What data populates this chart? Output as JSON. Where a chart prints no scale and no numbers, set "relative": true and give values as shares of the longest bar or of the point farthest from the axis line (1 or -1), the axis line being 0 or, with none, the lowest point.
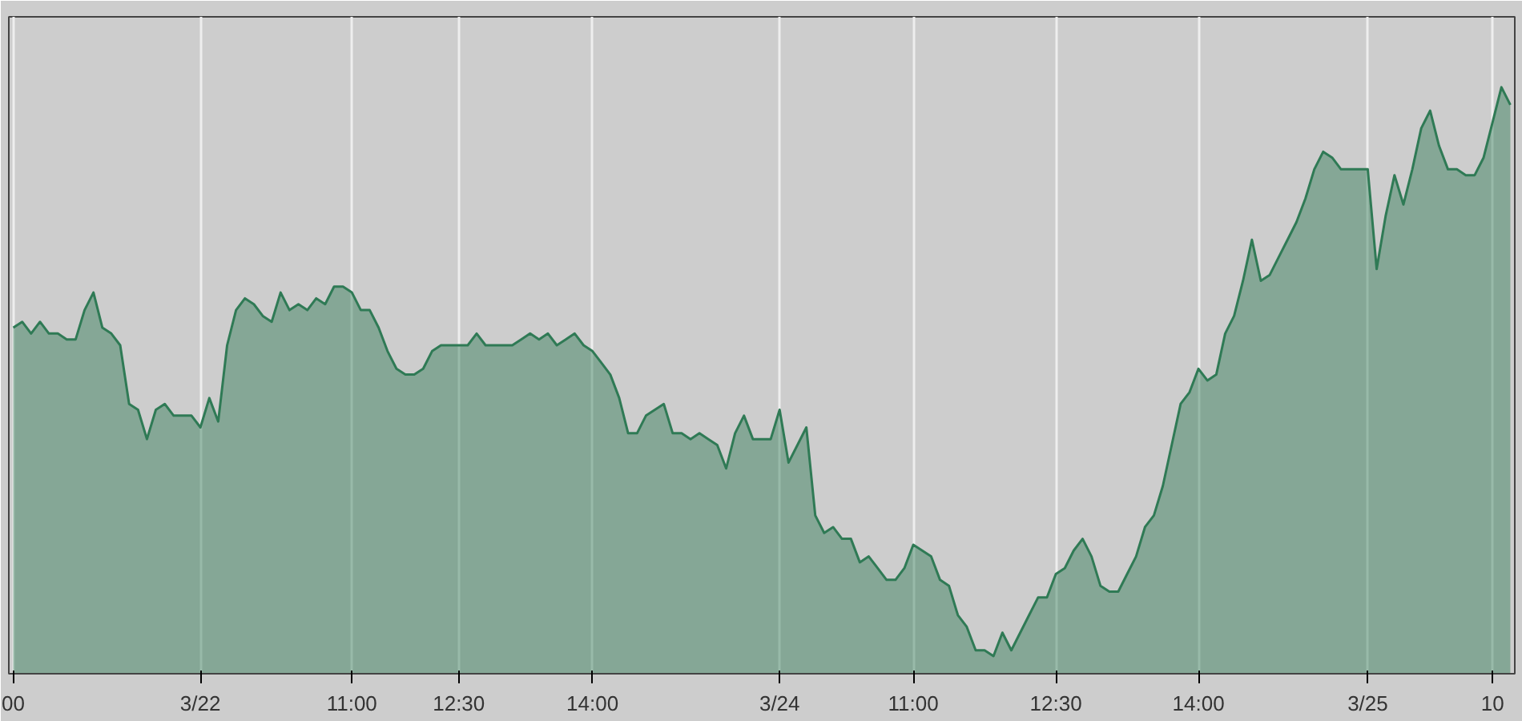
{
  "chart_data": {
    "type": "area",
    "relative": true,
    "grid": "x",
    "categories": [
      "00",
      null,
      null,
      null,
      null,
      null,
      null,
      null,
      null,
      null,
      null,
      null,
      null,
      null,
      null,
      null,
      null,
      null,
      null,
      null,
      null,
      "3/22",
      null,
      null,
      null,
      null,
      null,
      null,
      null,
      null,
      null,
      null,
      null,
      null,
      null,
      null,
      null,
      null,
      "11:00",
      null,
      null,
      null,
      null,
      null,
      null,
      null,
      null,
      null,
      null,
      null,
      "12:30",
      null,
      null,
      null,
      null,
      null,
      null,
      null,
      null,
      null,
      null,
      null,
      null,
      null,
      null,
      "14:00",
      null,
      null,
      null,
      null,
      null,
      null,
      null,
      null,
      null,
      null,
      null,
      null,
      null,
      null,
      null,
      null,
      null,
      null,
      null,
      null,
      "3/24",
      null,
      null,
      null,
      null,
      null,
      null,
      null,
      null,
      null,
      null,
      null,
      null,
      null,
      null,
      "11:00",
      null,
      null,
      null,
      null,
      null,
      null,
      null,
      null,
      null,
      null,
      null,
      null,
      null,
      null,
      null,
      "12:30",
      null,
      null,
      null,
      null,
      null,
      null,
      null,
      null,
      null,
      null,
      null,
      null,
      null,
      null,
      null,
      "14:00",
      null,
      null,
      null,
      null,
      null,
      null,
      null,
      null,
      null,
      null,
      null,
      null,
      null,
      null,
      null,
      null,
      null,
      null,
      "3/25",
      null,
      null,
      null,
      null,
      null,
      null,
      null,
      null,
      null,
      null,
      null,
      null,
      null,
      "10",
      null,
      null
    ],
    "series": [
      {
        "color": "#2f7a55",
        "values": [
          0.59,
          0.6,
          0.58,
          0.6,
          0.58,
          0.58,
          0.57,
          0.57,
          0.62,
          0.65,
          0.59,
          0.58,
          0.56,
          0.46,
          0.45,
          0.4,
          0.45,
          0.46,
          0.44,
          0.44,
          0.44,
          0.42,
          0.47,
          0.43,
          0.56,
          0.62,
          0.64,
          0.63,
          0.61,
          0.6,
          0.65,
          0.62,
          0.63,
          0.62,
          0.64,
          0.63,
          0.66,
          0.66,
          0.65,
          0.62,
          0.62,
          0.59,
          0.55,
          0.52,
          0.51,
          0.51,
          0.52,
          0.55,
          0.56,
          0.56,
          0.56,
          0.56,
          0.58,
          0.56,
          0.56,
          0.56,
          0.56,
          0.57,
          0.58,
          0.57,
          0.58,
          0.56,
          0.57,
          0.58,
          0.56,
          0.55,
          0.53,
          0.51,
          0.47,
          0.41,
          0.41,
          0.44,
          0.45,
          0.46,
          0.41,
          0.41,
          0.4,
          0.41,
          0.4,
          0.39,
          0.35,
          0.41,
          0.44,
          0.4,
          0.4,
          0.4,
          0.45,
          0.36,
          0.39,
          0.42,
          0.27,
          0.24,
          0.25,
          0.23,
          0.23,
          0.19,
          0.2,
          0.18,
          0.16,
          0.16,
          0.18,
          0.22,
          0.21,
          0.2,
          0.16,
          0.15,
          0.1,
          0.08,
          0.04,
          0.04,
          0.03,
          0.07,
          0.04,
          0.07,
          0.1,
          0.13,
          0.13,
          0.17,
          0.18,
          0.21,
          0.23,
          0.2,
          0.15,
          0.14,
          0.14,
          0.17,
          0.2,
          0.25,
          0.27,
          0.32,
          0.39,
          0.46,
          0.48,
          0.52,
          0.5,
          0.51,
          0.58,
          0.61,
          0.67,
          0.74,
          0.67,
          0.68,
          0.71,
          0.74,
          0.77,
          0.81,
          0.86,
          0.89,
          0.88,
          0.86,
          0.86,
          0.86,
          0.86,
          0.69,
          0.78,
          0.85,
          0.8,
          0.86,
          0.93,
          0.96,
          0.9,
          0.86,
          0.86,
          0.85,
          0.85,
          0.88,
          0.94,
          1.0,
          0.97
        ]
      }
    ]
  }
}
